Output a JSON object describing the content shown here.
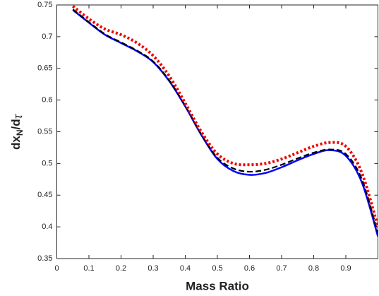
{
  "chart_data": {
    "type": "line",
    "xlabel": "Mass Ratio",
    "ylabel": [
      "dx",
      "N",
      "/d",
      "τ"
    ],
    "x": [
      0.05,
      0.1,
      0.15,
      0.2,
      0.25,
      0.3,
      0.35,
      0.4,
      0.45,
      0.5,
      0.55,
      0.6,
      0.65,
      0.7,
      0.75,
      0.8,
      0.85,
      0.9,
      0.95,
      1.0
    ],
    "series": [
      {
        "color": "#0000ff",
        "dash": "solid",
        "values": [
          0.742,
          0.722,
          0.703,
          0.69,
          0.677,
          0.66,
          0.63,
          0.59,
          0.545,
          0.507,
          0.488,
          0.482,
          0.485,
          0.494,
          0.505,
          0.515,
          0.521,
          0.512,
          0.47,
          0.385
        ]
      },
      {
        "color": "#000000",
        "dash": "dashed",
        "values": [
          0.743,
          0.723,
          0.704,
          0.691,
          0.678,
          0.661,
          0.631,
          0.591,
          0.546,
          0.509,
          0.492,
          0.487,
          0.49,
          0.498,
          0.508,
          0.517,
          0.522,
          0.515,
          0.475,
          0.39
        ]
      },
      {
        "color": "#ee0000",
        "dash": "dotted",
        "values": [
          0.748,
          0.728,
          0.712,
          0.703,
          0.69,
          0.67,
          0.638,
          0.595,
          0.55,
          0.515,
          0.5,
          0.498,
          0.5,
          0.507,
          0.517,
          0.527,
          0.533,
          0.527,
          0.485,
          0.4
        ]
      }
    ],
    "xlim": [
      0,
      1
    ],
    "xticks": [
      0,
      0.1,
      0.2,
      0.3,
      0.4,
      0.5,
      0.6,
      0.7,
      0.8,
      0.9
    ],
    "ylim": [
      0.35,
      0.75
    ],
    "yticks": [
      0.35,
      0.4,
      0.45,
      0.5,
      0.55,
      0.6,
      0.65,
      0.7,
      0.75
    ]
  }
}
